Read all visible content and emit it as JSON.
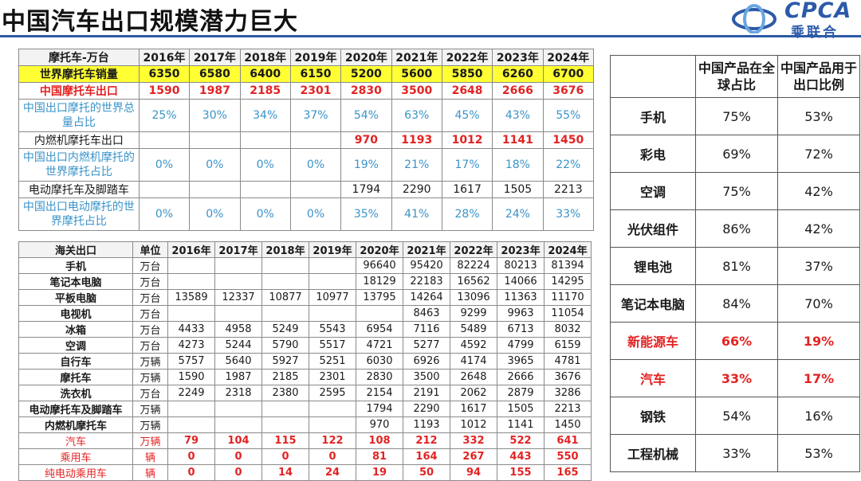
{
  "title": "中国汽车出口规模潜力巨大",
  "logo": {
    "brand": "CPCA",
    "cn_name": "乘联合"
  },
  "moto_table": {
    "header": [
      "摩托车-万台",
      "2016年",
      "2017年",
      "2018年",
      "2019年",
      "2020年",
      "2021年",
      "2022年",
      "2023年",
      "2024年"
    ],
    "rows": [
      {
        "label": "世界摩托车销量",
        "values": [
          "6350",
          "6580",
          "6400",
          "6150",
          "5200",
          "5600",
          "5850",
          "6260",
          "6700"
        ]
      },
      {
        "label": "中国摩托车出口",
        "values": [
          "1590",
          "1987",
          "2185",
          "2301",
          "2830",
          "3500",
          "2648",
          "2666",
          "3676"
        ]
      },
      {
        "label": "中国出口摩托的世界总量占比",
        "values": [
          "25%",
          "30%",
          "34%",
          "37%",
          "54%",
          "63%",
          "45%",
          "43%",
          "55%"
        ]
      },
      {
        "label": "内燃机摩托车出口",
        "values": [
          "",
          "",
          "",
          "",
          "970",
          "1193",
          "1012",
          "1141",
          "1450"
        ]
      },
      {
        "label": "中国出口内燃机摩托的世界摩托占比",
        "values": [
          "0%",
          "0%",
          "0%",
          "0%",
          "19%",
          "21%",
          "17%",
          "18%",
          "22%"
        ]
      },
      {
        "label": "电动摩托车及脚踏车",
        "values": [
          "",
          "",
          "",
          "",
          "1794",
          "2290",
          "1617",
          "1505",
          "2213"
        ]
      },
      {
        "label": "中国出口电动摩托的世界摩托占比",
        "values": [
          "0%",
          "0%",
          "0%",
          "0%",
          "35%",
          "41%",
          "28%",
          "24%",
          "33%"
        ]
      }
    ]
  },
  "customs_table": {
    "header": [
      "海关出口",
      "单位",
      "2016年",
      "2017年",
      "2018年",
      "2019年",
      "2020年",
      "2021年",
      "2022年",
      "2023年",
      "2024年"
    ],
    "rows": [
      {
        "label": "手机",
        "unit": "万台",
        "values": [
          "",
          "",
          "",
          "",
          "96640",
          "95420",
          "82224",
          "80213",
          "81394"
        ]
      },
      {
        "label": "笔记本电脑",
        "unit": "万台",
        "values": [
          "",
          "",
          "",
          "",
          "18129",
          "22183",
          "16562",
          "14066",
          "14295"
        ]
      },
      {
        "label": "平板电脑",
        "unit": "万台",
        "values": [
          "13589",
          "12337",
          "10877",
          "10977",
          "13795",
          "14264",
          "13096",
          "11363",
          "11170"
        ]
      },
      {
        "label": "电视机",
        "unit": "万台",
        "values": [
          "",
          "",
          "",
          "",
          "",
          "8463",
          "9299",
          "9963",
          "11054"
        ]
      },
      {
        "label": "冰箱",
        "unit": "万台",
        "values": [
          "4433",
          "4958",
          "5249",
          "5543",
          "6954",
          "7116",
          "5489",
          "6713",
          "8032"
        ]
      },
      {
        "label": "空调",
        "unit": "万台",
        "values": [
          "4273",
          "5244",
          "5790",
          "5517",
          "4721",
          "5277",
          "4592",
          "4799",
          "6159"
        ]
      },
      {
        "label": "自行车",
        "unit": "万辆",
        "values": [
          "5757",
          "5640",
          "5927",
          "5251",
          "6030",
          "6926",
          "4174",
          "3965",
          "4781"
        ]
      },
      {
        "label": "摩托车",
        "unit": "万辆",
        "values": [
          "1590",
          "1987",
          "2185",
          "2301",
          "2830",
          "3500",
          "2648",
          "2666",
          "3676"
        ]
      },
      {
        "label": "洗衣机",
        "unit": "万台",
        "values": [
          "2249",
          "2318",
          "2380",
          "2595",
          "2154",
          "2191",
          "2062",
          "2879",
          "3286"
        ]
      },
      {
        "label": "电动摩托车及脚踏车",
        "unit": "万辆",
        "values": [
          "",
          "",
          "",
          "",
          "1794",
          "2290",
          "1617",
          "1505",
          "2213"
        ]
      },
      {
        "label": "内燃机摩托车",
        "unit": "万辆",
        "values": [
          "",
          "",
          "",
          "",
          "970",
          "1193",
          "1012",
          "1141",
          "1450"
        ]
      },
      {
        "label": "汽车",
        "unit": "万辆",
        "values": [
          "79",
          "104",
          "115",
          "122",
          "108",
          "212",
          "332",
          "522",
          "641"
        ]
      },
      {
        "label": "乘用车",
        "unit": "辆",
        "values": [
          "0",
          "0",
          "0",
          "0",
          "81",
          "164",
          "267",
          "443",
          "550"
        ]
      },
      {
        "label": "纯电动乘用车",
        "unit": "辆",
        "values": [
          "0",
          "0",
          "14",
          "24",
          "19",
          "50",
          "94",
          "155",
          "165"
        ]
      }
    ]
  },
  "share_table": {
    "header": [
      "",
      "中国产品在全球占比",
      "中国产品用于出口比例"
    ],
    "rows": [
      {
        "name": "手机",
        "global_share": "75%",
        "export_ratio": "53%"
      },
      {
        "name": "彩电",
        "global_share": "69%",
        "export_ratio": "72%"
      },
      {
        "name": "空调",
        "global_share": "75%",
        "export_ratio": "42%"
      },
      {
        "name": "光伏组件",
        "global_share": "86%",
        "export_ratio": "42%"
      },
      {
        "name": "锂电池",
        "global_share": "81%",
        "export_ratio": "37%"
      },
      {
        "name": "笔记本电脑",
        "global_share": "84%",
        "export_ratio": "70%"
      },
      {
        "name": "新能源车",
        "global_share": "66%",
        "export_ratio": "19%"
      },
      {
        "name": "汽车",
        "global_share": "33%",
        "export_ratio": "17%"
      },
      {
        "name": "钢铁",
        "global_share": "54%",
        "export_ratio": "16%"
      },
      {
        "name": "工程机械",
        "global_share": "33%",
        "export_ratio": "53%"
      }
    ]
  },
  "colors": {
    "highlight_yellow": "#ffff33",
    "red": "#e32323",
    "blue_text": "#3a93c9",
    "brand_blue": "#2c5aa8"
  }
}
